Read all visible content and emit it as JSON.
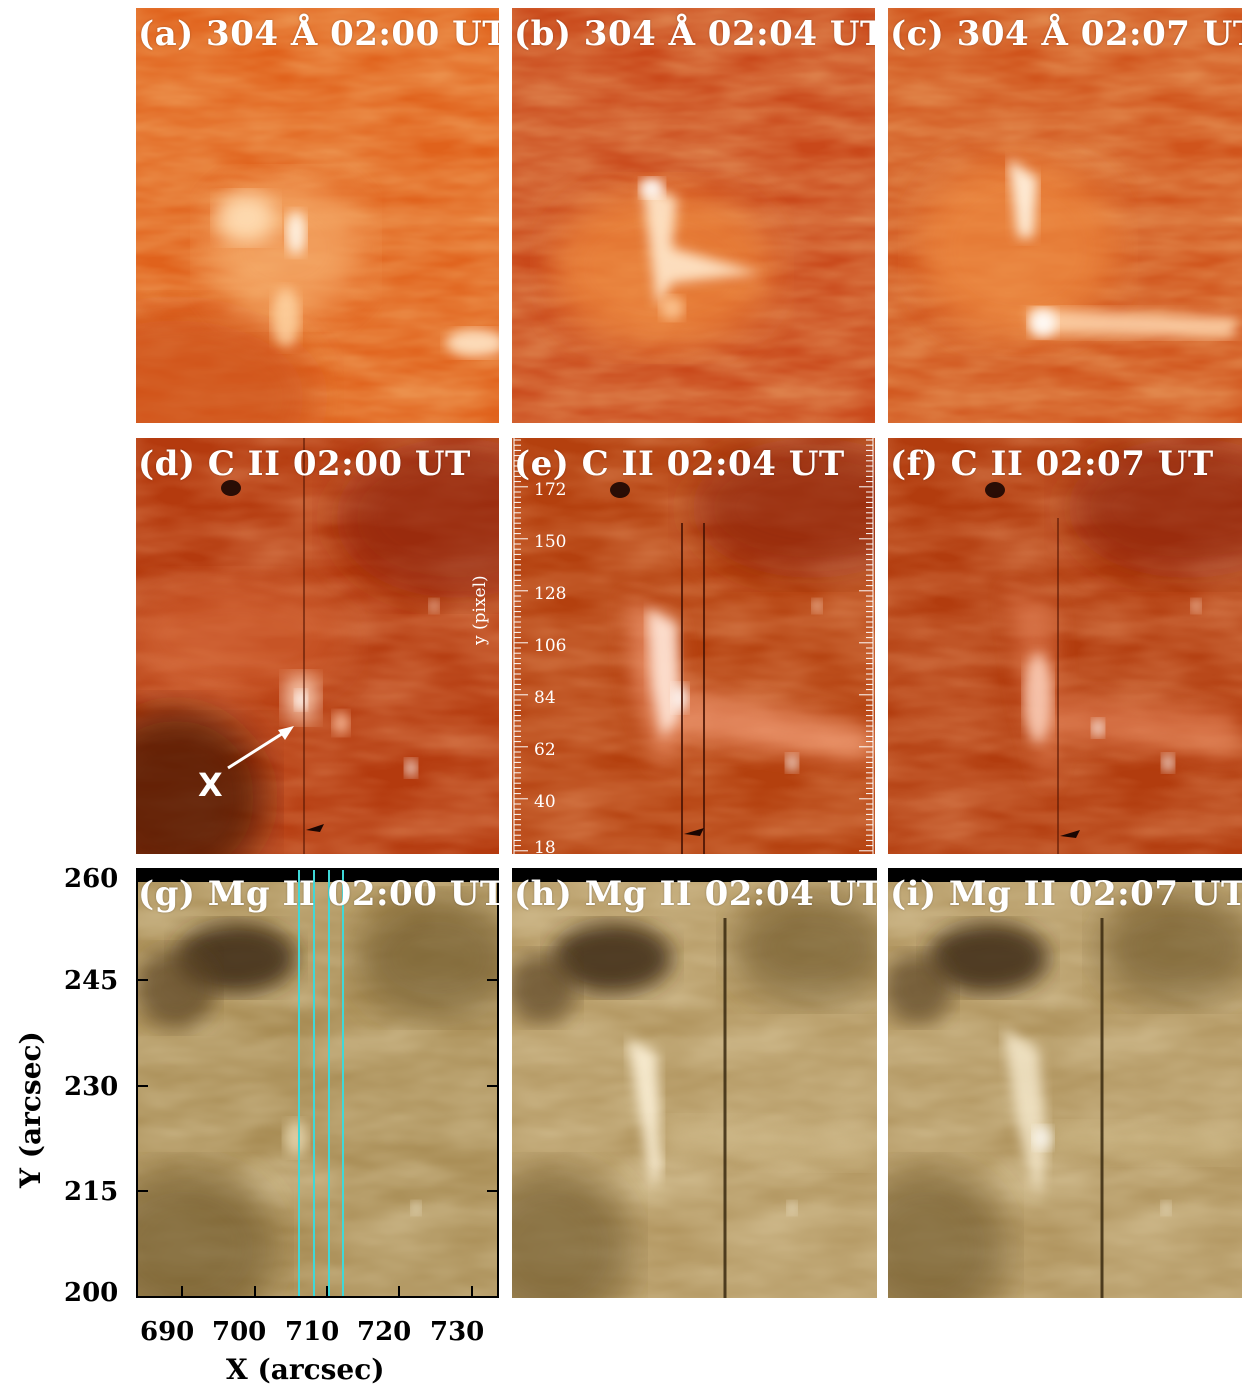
{
  "panels": {
    "a": {
      "label": "(a) 304 Å 02:00 UT"
    },
    "b": {
      "label": "(b) 304 Å 02:04 UT"
    },
    "c": {
      "label": "(c) 304 Å 02:07 UT"
    },
    "d": {
      "label": "(d) C II 02:00 UT"
    },
    "e": {
      "label": "(e) C II 02:04 UT"
    },
    "f": {
      "label": "(f) C II 02:07 UT"
    },
    "g": {
      "label": "(g) Mg II 02:00 UT"
    },
    "h": {
      "label": "(h) Mg II 02:04 UT"
    },
    "i": {
      "label": "(i) Mg II 02:07 UT"
    }
  },
  "annotations": {
    "x_marker": "X",
    "inner_axis_title": "y (pixel)",
    "inner_ticks": [
      "172",
      "150",
      "128",
      "106",
      "84",
      "62",
      "40",
      "18"
    ]
  },
  "axes": {
    "y_title": "Y (arcsec)",
    "x_title": "X (arcsec)",
    "y_ticks": [
      "260",
      "245",
      "230",
      "215",
      "200"
    ],
    "x_ticks": [
      "690",
      "700",
      "710",
      "720",
      "730"
    ]
  },
  "colors": {
    "aia304_base": "#e8641a",
    "cii_base": "#b8380c",
    "mgii_base": "#a48a52",
    "slit_lines": "#3fd8d8"
  }
}
